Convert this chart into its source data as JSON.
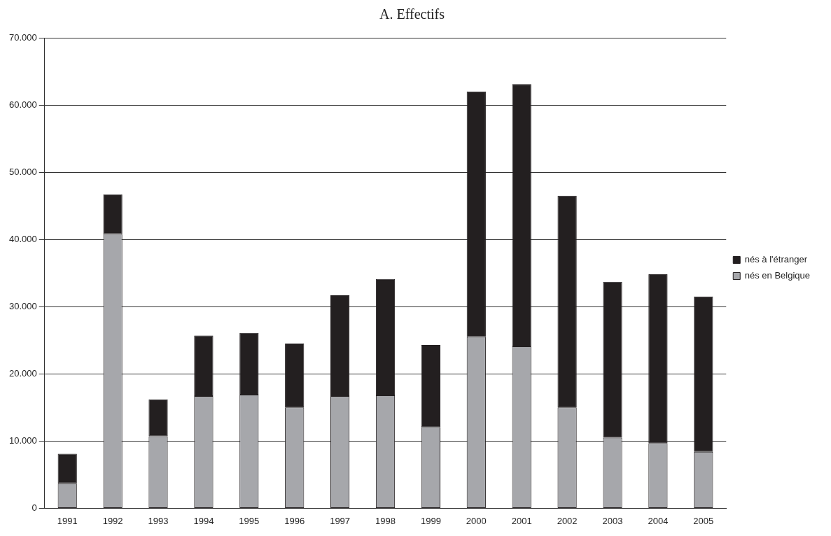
{
  "chart_data": {
    "type": "bar",
    "title": "A. Effectifs",
    "stacked": true,
    "legend": "right",
    "grid": "y",
    "categories": [
      "1991",
      "1992",
      "1993",
      "1994",
      "1995",
      "1996",
      "1997",
      "1998",
      "1999",
      "2000",
      "2001",
      "2002",
      "2003",
      "2004",
      "2005"
    ],
    "series": [
      {
        "name": "nés en Belgique",
        "color": "#a6a7ab",
        "values": [
          3700,
          40800,
          10700,
          16700,
          16900,
          15000,
          16700,
          16800,
          12100,
          25500,
          24100,
          15000,
          10500,
          9700,
          8400
        ]
      },
      {
        "name": "nés à l'étranger",
        "color": "#231f20",
        "values": [
          4400,
          5900,
          5500,
          9000,
          9200,
          9500,
          15000,
          17300,
          12200,
          36500,
          39000,
          31500,
          23200,
          25100,
          23100
        ]
      }
    ],
    "ylim": [
      0,
      70000
    ],
    "yticks": [
      0,
      {
        "value": 10000,
        "label": "10.000"
      },
      {
        "value": 20000,
        "label": "20.000"
      },
      {
        "value": 30000,
        "label": "30.000"
      },
      {
        "value": 40000,
        "label": "40.000"
      },
      {
        "value": 50000,
        "label": "50.000"
      },
      {
        "value": 60000,
        "label": "60.000"
      },
      {
        "value": 70000,
        "label": "70.000"
      }
    ]
  }
}
